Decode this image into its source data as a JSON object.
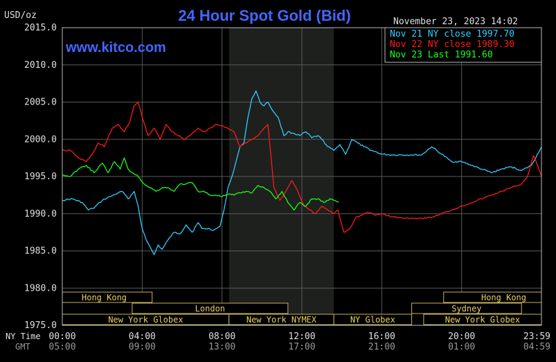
{
  "chart_data": {
    "type": "line",
    "title": "24 Hour Spot Gold (Bid)",
    "watermark": "www.kitco.com",
    "ylabel": "USD/oz",
    "datetime": "November 23, 2023 14:02",
    "ylim": [
      1975.0,
      2015.0
    ],
    "y_ticks": [
      "2015.0",
      "2010.0",
      "2005.0",
      "2000.0",
      "1995.0",
      "1990.0",
      "1985.0",
      "1980.0",
      "1975.0"
    ],
    "x_range_hours": [
      0,
      24
    ],
    "x_ticks_ny": [
      "00:00",
      "04:00",
      "08:00",
      "12:00",
      "16:00",
      "20:00",
      "23:59"
    ],
    "x_ticks_gmt": [
      "05:00",
      "09:00",
      "13:00",
      "17:00",
      "21:00",
      "01:00",
      "04:59"
    ],
    "x_axis_label_ny": "NY Time",
    "x_axis_label_gmt": "GMT",
    "shaded_period": [
      8.35,
      13.6
    ],
    "sessions": [
      {
        "label": "Hong Kong",
        "row": 0,
        "start": 0.0,
        "end": 4.5
      },
      {
        "label": "Hong Kong",
        "row": 0,
        "start": 19.1,
        "end": 24.0
      },
      {
        "label": "London",
        "row": 1,
        "start": 3.5,
        "end": 11.3
      },
      {
        "label": "Sydney",
        "row": 1,
        "start": 17.5,
        "end": 23.0
      },
      {
        "label": "New York Globex",
        "row": 2,
        "start": 0.0,
        "end": 8.35
      },
      {
        "label": "New York NYMEX",
        "row": 2,
        "start": 8.35,
        "end": 13.6
      },
      {
        "label": "NY Globex",
        "row": 2,
        "start": 13.6,
        "end": 17.5
      },
      {
        "label": "New York Globex",
        "row": 2,
        "start": 18.1,
        "end": 24.0
      }
    ],
    "legend": [
      {
        "label": "Nov 21 NY close 1997.70",
        "color": "#33ccff"
      },
      {
        "label": "Nov 22 NY close 1989.30",
        "color": "#ff1a1a"
      },
      {
        "label": "Nov 23 Last 1991.60",
        "color": "#1aff1a"
      }
    ],
    "legend_position": "top-right",
    "series": [
      {
        "color": "#33ccff",
        "x": [
          0,
          0.5,
          1,
          1.3,
          1.6,
          2,
          2.4,
          2.8,
          3,
          3.3,
          3.6,
          3.8,
          4,
          4.2,
          4.4,
          4.6,
          4.8,
          5,
          5.3,
          5.6,
          5.9,
          6.2,
          6.5,
          6.8,
          7,
          7.3,
          7.6,
          7.9,
          8.1,
          8.3,
          8.5,
          8.7,
          8.9,
          9.1,
          9.3,
          9.5,
          9.7,
          9.9,
          10.1,
          10.3,
          10.5,
          10.8,
          11.1,
          11.3,
          11.6,
          11.9,
          12.2,
          12.5,
          12.8,
          13,
          13.3,
          13.6,
          13.9,
          14.2,
          14.5,
          14.8,
          15.1,
          15.5,
          16,
          16.5,
          17,
          17.5,
          18,
          18.5,
          19,
          19.5,
          20,
          20.5,
          21,
          21.5,
          22,
          22.5,
          23,
          23.5,
          24
        ],
        "y": [
          1991.8,
          1992.0,
          1991.5,
          1990.5,
          1990.8,
          1991.8,
          1992.3,
          1992.8,
          1993.0,
          1992.0,
          1993.0,
          1991.0,
          1988.0,
          1986.5,
          1985.5,
          1984.5,
          1985.8,
          1985.2,
          1986.5,
          1987.5,
          1987.3,
          1988.5,
          1987.5,
          1988.8,
          1988.0,
          1988.0,
          1987.8,
          1988.3,
          1990.5,
          1993.5,
          1995.0,
          1997.0,
          1999.0,
          1999.5,
          2003.0,
          2005.5,
          2006.5,
          2005.0,
          2004.5,
          2005.0,
          2004.0,
          2003.0,
          2000.5,
          2001.0,
          2000.8,
          2000.5,
          2001.0,
          2000.2,
          2000.5,
          2000.0,
          1999.0,
          1998.5,
          1999.3,
          1998.0,
          2000.0,
          1999.5,
          1999.0,
          1998.5,
          1998.0,
          1997.9,
          1997.9,
          1997.9,
          1997.9,
          1999.0,
          1998.0,
          1997.0,
          1997.0,
          1996.5,
          1996.0,
          1995.5,
          1996.0,
          1996.3,
          1995.8,
          1996.5,
          1999.0
        ]
      },
      {
        "color": "#ff1a1a",
        "x": [
          0,
          0.4,
          0.8,
          1.2,
          1.5,
          1.8,
          2.1,
          2.5,
          2.8,
          3.1,
          3.4,
          3.6,
          3.8,
          4,
          4.3,
          4.6,
          4.9,
          5.2,
          5.5,
          5.8,
          6.1,
          6.4,
          6.8,
          7.1,
          7.4,
          7.7,
          8,
          8.3,
          8.6,
          8.9,
          9.2,
          9.5,
          9.8,
          10.1,
          10.3,
          10.6,
          10.9,
          11.2,
          11.5,
          11.8,
          12.1,
          12.4,
          12.7,
          13,
          13.3,
          13.6,
          13.8,
          14.1,
          14.4,
          14.7,
          15,
          15.3,
          15.7,
          16,
          16.5,
          17,
          17.5,
          18,
          18.5,
          19,
          19.5,
          20,
          20.5,
          21,
          21.5,
          22,
          22.5,
          23,
          23.3,
          23.6,
          23.8,
          24
        ],
        "y": [
          1998.5,
          1998.5,
          1997.5,
          1997.0,
          1998.0,
          1999.5,
          1999.0,
          2001.5,
          2002.0,
          2001.0,
          2002.5,
          2004.5,
          2005.0,
          2003.0,
          2000.5,
          2001.5,
          2000.0,
          2002.0,
          2001.0,
          2000.5,
          2000.0,
          2000.5,
          2001.5,
          2001.0,
          2001.5,
          2002.0,
          2001.8,
          2001.5,
          2001.0,
          1999.0,
          1999.5,
          2000.0,
          2000.5,
          2001.5,
          2002.0,
          1993.5,
          1991.8,
          1993.0,
          1994.5,
          1993.0,
          1991.0,
          1990.5,
          1990.0,
          1991.0,
          1990.5,
          1990.0,
          1990.5,
          1987.5,
          1988.0,
          1989.5,
          1989.8,
          1990.2,
          1989.8,
          1990.0,
          1989.6,
          1989.4,
          1989.4,
          1989.4,
          1989.5,
          1990.0,
          1990.5,
          1991.0,
          1991.5,
          1992.0,
          1992.5,
          1993.0,
          1993.5,
          1994.0,
          1995.0,
          1997.8,
          1996.5,
          1995.0
        ]
      },
      {
        "color": "#1aff1a",
        "x": [
          0,
          0.4,
          0.8,
          1.2,
          1.6,
          2,
          2.3,
          2.6,
          2.9,
          3.1,
          3.3,
          3.5,
          3.8,
          4.1,
          4.4,
          4.7,
          5,
          5.3,
          5.6,
          5.9,
          6.2,
          6.5,
          6.8,
          7.1,
          7.4,
          7.7,
          8,
          8.3,
          8.6,
          8.9,
          9.2,
          9.5,
          9.8,
          10.1,
          10.4,
          10.7,
          11,
          11.3,
          11.6,
          11.9,
          12.2,
          12.5,
          12.8,
          13.1,
          13.4,
          13.6,
          13.85
        ],
        "y": [
          1995.2,
          1995.0,
          1996.0,
          1996.5,
          1995.5,
          1996.8,
          1995.5,
          1997.0,
          1996.0,
          1997.5,
          1996.0,
          1995.5,
          1995.0,
          1994.0,
          1993.5,
          1993.0,
          1993.5,
          1993.5,
          1993.0,
          1994.0,
          1994.0,
          1994.2,
          1993.0,
          1993.0,
          1992.5,
          1992.5,
          1992.3,
          1992.6,
          1992.5,
          1992.8,
          1993.0,
          1992.8,
          1993.8,
          1993.5,
          1993.0,
          1992.0,
          1993.0,
          1991.5,
          1990.5,
          1991.5,
          1991.0,
          1992.0,
          1992.0,
          1991.5,
          1992.0,
          1991.8,
          1991.6
        ]
      }
    ]
  }
}
